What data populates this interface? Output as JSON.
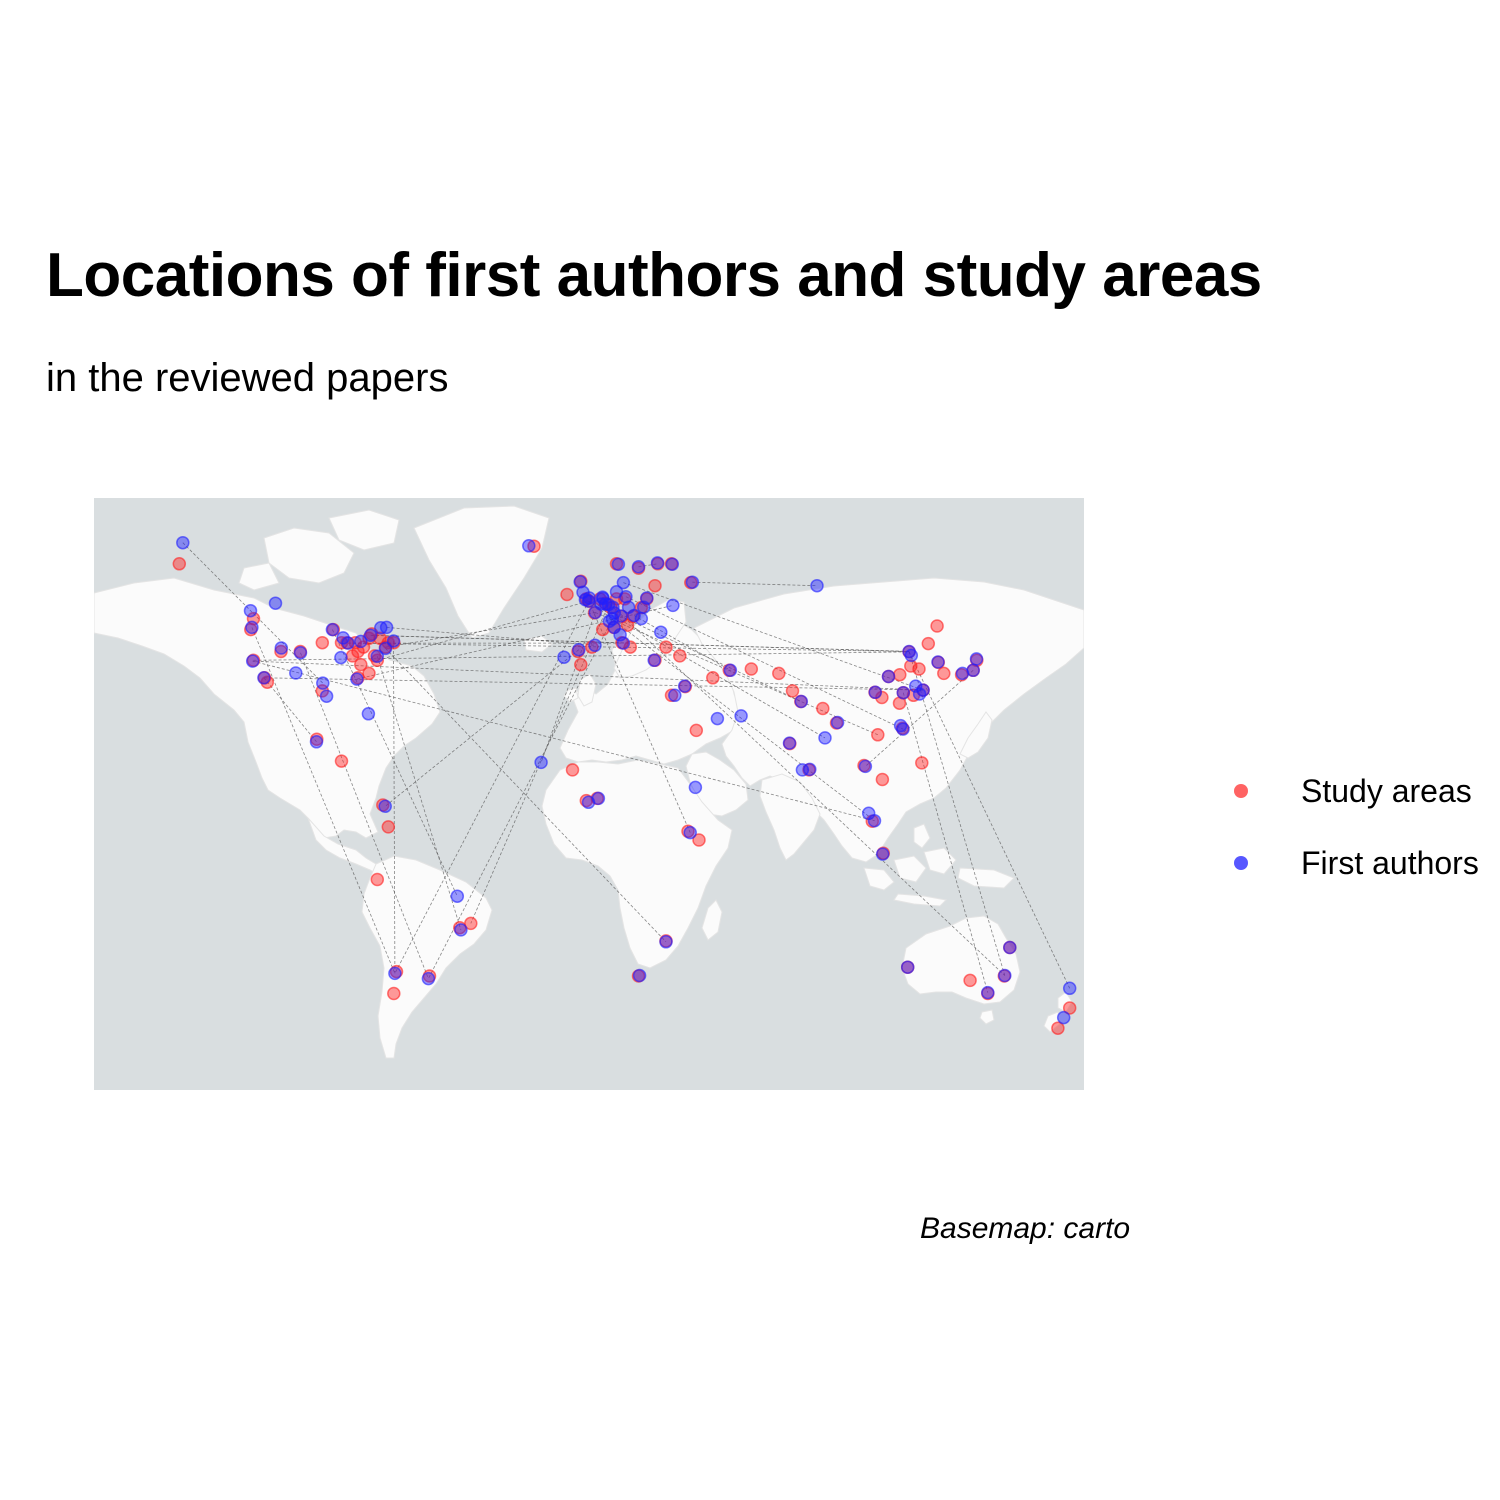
{
  "title": "Locations of first authors and study areas",
  "subtitle": "in the reviewed papers",
  "caption": "Basemap: carto",
  "legend": {
    "items": [
      {
        "label": "Study areas",
        "color": "#ff3030"
      },
      {
        "label": "First authors",
        "color": "#2020ff"
      }
    ]
  },
  "colors": {
    "ocean": "#d9dee0",
    "land": "#fbfbfb",
    "border": "#e2e2e2",
    "study": "#ff2020",
    "author": "#2020ff",
    "link": "#555555"
  },
  "chart_data": {
    "type": "scatter",
    "projection": "equirectangular",
    "lon_range": [
      -180,
      180
    ],
    "lat_range": [
      -60,
      75
    ],
    "series": [
      {
        "name": "Study areas",
        "points": [
          [
            -122,
            38
          ],
          [
            -118,
            34
          ],
          [
            -122,
            47.5
          ],
          [
            -123,
            45
          ],
          [
            -117,
            33
          ],
          [
            -112,
            40
          ],
          [
            -105,
            40
          ],
          [
            -97,
            42
          ],
          [
            -93,
            45
          ],
          [
            -90,
            42
          ],
          [
            -88,
            42
          ],
          [
            -85,
            42
          ],
          [
            -84,
            40
          ],
          [
            -82,
            41
          ],
          [
            -80,
            43
          ],
          [
            -79,
            44
          ],
          [
            -76,
            43
          ],
          [
            -74,
            41
          ],
          [
            -73,
            42
          ],
          [
            -71,
            42
          ],
          [
            -78,
            39
          ],
          [
            -77,
            38
          ],
          [
            -80,
            35
          ],
          [
            -83,
            37
          ],
          [
            -86,
            39
          ],
          [
            -84,
            34
          ],
          [
            -97,
            31
          ],
          [
            -99,
            20
          ],
          [
            -90,
            15
          ],
          [
            -75,
            5
          ],
          [
            -73,
            0
          ],
          [
            -77,
            -12
          ],
          [
            -70,
            -33
          ],
          [
            -71,
            -38
          ],
          [
            -47,
            -23
          ],
          [
            -43,
            -22
          ],
          [
            -58,
            -34
          ],
          [
            -149,
            60
          ],
          [
            -20,
            64
          ],
          [
            -3,
            56
          ],
          [
            -1,
            52
          ],
          [
            0,
            51.5
          ],
          [
            2,
            48.8
          ],
          [
            4,
            52
          ],
          [
            6,
            51
          ],
          [
            8,
            50
          ],
          [
            10,
            52
          ],
          [
            13,
            52
          ],
          [
            12,
            48
          ],
          [
            16,
            48
          ],
          [
            14,
            46
          ],
          [
            19,
            50
          ],
          [
            21,
            52
          ],
          [
            24,
            55
          ],
          [
            25,
            60
          ],
          [
            18,
            59
          ],
          [
            10,
            60
          ],
          [
            -8,
            53
          ],
          [
            -4,
            40
          ],
          [
            -3,
            37
          ],
          [
            1,
            41
          ],
          [
            5,
            45
          ],
          [
            9,
            45.5
          ],
          [
            12,
            42
          ],
          [
            15,
            41
          ],
          [
            24,
            38
          ],
          [
            28,
            41
          ],
          [
            33,
            39
          ],
          [
            35,
            32
          ],
          [
            30,
            30
          ],
          [
            39,
            22
          ],
          [
            45,
            34
          ],
          [
            51,
            35.7
          ],
          [
            59,
            36
          ],
          [
            37,
            55.7
          ],
          [
            30,
            60
          ],
          [
            40,
            -3
          ],
          [
            36,
            -1
          ],
          [
            -6,
            13
          ],
          [
            3,
            6.5
          ],
          [
            -1,
            6
          ],
          [
            28,
            -26
          ],
          [
            18,
            -34
          ],
          [
            69,
            35
          ],
          [
            74,
            31
          ],
          [
            77,
            28.6
          ],
          [
            80,
            13
          ],
          [
            73,
            19
          ],
          [
            85,
            27
          ],
          [
            90,
            23.7
          ],
          [
            100,
            14
          ],
          [
            103,
            1.3
          ],
          [
            105,
            21
          ],
          [
            106.7,
            10.8
          ],
          [
            114,
            22.5
          ],
          [
            116.4,
            39.9
          ],
          [
            121.5,
            31.2
          ],
          [
            118,
            30
          ],
          [
            113,
            34.7
          ],
          [
            108.9,
            34.3
          ],
          [
            104,
            30.7
          ],
          [
            106.5,
            29.5
          ],
          [
            112.9,
            28.2
          ],
          [
            114.3,
            30.6
          ],
          [
            117,
            36.7
          ],
          [
            120,
            36
          ],
          [
            123.4,
            41.8
          ],
          [
            126.6,
            45.8
          ],
          [
            127,
            37.5
          ],
          [
            129,
            35
          ],
          [
            135.5,
            34.7
          ],
          [
            139.7,
            35.7
          ],
          [
            141,
            38
          ],
          [
            121,
            14.6
          ],
          [
            107,
            -6
          ],
          [
            151,
            -34
          ],
          [
            145,
            -38
          ],
          [
            138.6,
            -35
          ],
          [
            115.9,
            -32
          ],
          [
            174.8,
            -41.3
          ],
          [
            170.5,
            -45.9
          ],
          [
            153,
            -27.5
          ]
        ]
      },
      {
        "name": "First authors",
        "points": [
          [
            -122.3,
            37.8
          ],
          [
            -118.2,
            34
          ],
          [
            -122.6,
            45.5
          ],
          [
            -104.9,
            39.7
          ],
          [
            -111.9,
            40.8
          ],
          [
            -96.8,
            32.8
          ],
          [
            -95.4,
            29.8
          ],
          [
            -87.6,
            41.9
          ],
          [
            -83,
            42.3
          ],
          [
            -79.4,
            43.7
          ],
          [
            -75.7,
            45.4
          ],
          [
            -73.6,
            45.5
          ],
          [
            -74,
            40.7
          ],
          [
            -71.1,
            42.4
          ],
          [
            -77,
            38.9
          ],
          [
            -84.4,
            33.7
          ],
          [
            -80.2,
            25.8
          ],
          [
            -90.2,
            38.6
          ],
          [
            -93.3,
            45
          ],
          [
            -89.4,
            43.1
          ],
          [
            -106.6,
            35.1
          ],
          [
            -114,
            51
          ],
          [
            -123.1,
            49.3
          ],
          [
            -147.7,
            64.8
          ],
          [
            -99.1,
            19.4
          ],
          [
            -74.1,
            4.7
          ],
          [
            -70.6,
            -33.4
          ],
          [
            -46.6,
            -23.5
          ],
          [
            -47.9,
            -15.8
          ],
          [
            -58.4,
            -34.6
          ],
          [
            -21.9,
            64.1
          ],
          [
            -0.1,
            51.5
          ],
          [
            -1.3,
            51.8
          ],
          [
            0.1,
            52.2
          ],
          [
            -3.2,
            55.9
          ],
          [
            -2.2,
            53.5
          ],
          [
            2.3,
            48.9
          ],
          [
            4.9,
            52.4
          ],
          [
            5.1,
            52.1
          ],
          [
            4.4,
            50.8
          ],
          [
            6.1,
            50.8
          ],
          [
            7.1,
            50.7
          ],
          [
            8.7,
            50.1
          ],
          [
            9.2,
            48.8
          ],
          [
            11.6,
            48.1
          ],
          [
            13.4,
            52.5
          ],
          [
            10,
            53.6
          ],
          [
            12.5,
            55.7
          ],
          [
            18,
            59.3
          ],
          [
            10.7,
            59.9
          ],
          [
            24.9,
            60.2
          ],
          [
            16.4,
            48.2
          ],
          [
            8.5,
            47.4
          ],
          [
            7.4,
            46.9
          ],
          [
            11.3,
            43.8
          ],
          [
            12.5,
            41.9
          ],
          [
            9.2,
            45.5
          ],
          [
            -3.7,
            40.4
          ],
          [
            2.2,
            41.4
          ],
          [
            -9.1,
            38.7
          ],
          [
            23.7,
            38
          ],
          [
            21,
            52.2
          ],
          [
            19.9,
            50.1
          ],
          [
            14.4,
            50.1
          ],
          [
            19,
            47.5
          ],
          [
            26.1,
            44.4
          ],
          [
            30.5,
            50.5
          ],
          [
            37.6,
            55.8
          ],
          [
            30.3,
            59.9
          ],
          [
            82.9,
            55
          ],
          [
            34.8,
            32.1
          ],
          [
            31.2,
            30
          ],
          [
            46.7,
            24.7
          ],
          [
            51.4,
            35.7
          ],
          [
            55.3,
            25.3
          ],
          [
            77.2,
            28.6
          ],
          [
            72.9,
            19.1
          ],
          [
            80.3,
            13.1
          ],
          [
            77.6,
            13
          ],
          [
            85.8,
            20.3
          ],
          [
            90.4,
            23.8
          ],
          [
            100.5,
            13.8
          ],
          [
            103.8,
            1.4
          ],
          [
            101.7,
            3.1
          ],
          [
            106.8,
            -6.2
          ],
          [
            114.2,
            22.3
          ],
          [
            113.3,
            23.1
          ],
          [
            116.4,
            40
          ],
          [
            121.5,
            31.2
          ],
          [
            118.8,
            32.1
          ],
          [
            120.2,
            30.3
          ],
          [
            114.3,
            30.6
          ],
          [
            104.1,
            30.7
          ],
          [
            108.9,
            34.3
          ],
          [
            117.2,
            39.1
          ],
          [
            126.9,
            37.6
          ],
          [
            139.7,
            35.7
          ],
          [
            135.8,
            35
          ],
          [
            140.9,
            38.3
          ],
          [
            151.2,
            -33.9
          ],
          [
            145,
            -37.8
          ],
          [
            153,
            -27.5
          ],
          [
            115.9,
            -32
          ],
          [
            174.8,
            -36.8
          ],
          [
            172.6,
            -43.5
          ],
          [
            28,
            -26.2
          ],
          [
            18.4,
            -33.9
          ],
          [
            36.8,
            -1.3
          ],
          [
            3.4,
            6.5
          ],
          [
            -17.4,
            14.7
          ],
          [
            -0.2,
            5.6
          ],
          [
            38.7,
            9
          ]
        ]
      }
    ],
    "links": [
      [
        [
          -122,
          38
        ],
        [
          116.4,
          39.9
        ]
      ],
      [
        [
          -118,
          34
        ],
        [
          121.5,
          31.2
        ]
      ],
      [
        [
          -77,
          38
        ],
        [
          -0.1,
          51.5
        ]
      ],
      [
        [
          -74,
          41
        ],
        [
          2.3,
          48.9
        ]
      ],
      [
        [
          -87.6,
          41.9
        ],
        [
          12.5,
          41.9
        ]
      ],
      [
        [
          -79.4,
          43.7
        ],
        [
          116.4,
          40
        ]
      ],
      [
        [
          -71.1,
          42.4
        ],
        [
          -70.6,
          -33.4
        ]
      ],
      [
        [
          -0.1,
          51.5
        ],
        [
          36.8,
          -1.3
        ]
      ],
      [
        [
          -0.1,
          51.5
        ],
        [
          77.2,
          28.6
        ]
      ],
      [
        [
          2.3,
          48.9
        ],
        [
          -17.4,
          14.7
        ]
      ],
      [
        [
          13.4,
          52.5
        ],
        [
          114.2,
          22.3
        ]
      ],
      [
        [
          4.9,
          52.4
        ],
        [
          151.2,
          -33.9
        ]
      ],
      [
        [
          116.4,
          40
        ],
        [
          151.2,
          -33.9
        ]
      ],
      [
        [
          121.5,
          31.2
        ],
        [
          -122.3,
          37.8
        ]
      ],
      [
        [
          -122.3,
          37.8
        ],
        [
          103.8,
          1.4
        ]
      ],
      [
        [
          -77,
          38.9
        ],
        [
          -46.6,
          -23.5
        ]
      ],
      [
        [
          8.5,
          47.4
        ],
        [
          -58.4,
          -34.6
        ]
      ],
      [
        [
          -3.7,
          40.4
        ],
        [
          -74.1,
          4.7
        ]
      ],
      [
        [
          -0.1,
          51.5
        ],
        [
          -70.6,
          -33.4
        ]
      ],
      [
        [
          -147.7,
          64.8
        ],
        [
          -96.8,
          32.8
        ]
      ],
      [
        [
          37.6,
          55.8
        ],
        [
          82.9,
          55
        ]
      ],
      [
        [
          139.7,
          35.7
        ],
        [
          100.5,
          13.8
        ]
      ],
      [
        [
          -87.6,
          41.9
        ],
        [
          116.4,
          40
        ]
      ],
      [
        [
          -73.6,
          45.5
        ],
        [
          2.2,
          41.4
        ]
      ],
      [
        [
          -118.2,
          34
        ],
        [
          -99.1,
          19.4
        ]
      ],
      [
        [
          2.3,
          48.9
        ],
        [
          105,
          21
        ]
      ],
      [
        [
          -0.1,
          51.5
        ],
        [
          103.8,
          1.4
        ]
      ],
      [
        [
          -74,
          40.7
        ],
        [
          28,
          -26.2
        ]
      ],
      [
        [
          18,
          59.3
        ],
        [
          25,
          60
        ]
      ],
      [
        [
          116.4,
          40
        ],
        [
          -79.4,
          43.7
        ]
      ],
      [
        [
          114.3,
          30.6
        ],
        [
          145,
          -37.8
        ]
      ],
      [
        [
          -122.6,
          45.5
        ],
        [
          -70.6,
          -33.4
        ]
      ],
      [
        [
          12.5,
          55.7
        ],
        [
          121.5,
          31.2
        ]
      ],
      [
        [
          -93.3,
          45
        ],
        [
          -47.9,
          -15.8
        ]
      ],
      [
        [
          16.4,
          48.2
        ],
        [
          51.4,
          35.7
        ]
      ],
      [
        [
          -1.3,
          51.8
        ],
        [
          85.8,
          20.3
        ]
      ],
      [
        [
          -104.9,
          39.7
        ],
        [
          -58.4,
          -34.6
        ]
      ],
      [
        [
          7.1,
          50.7
        ],
        [
          -43,
          -22
        ]
      ],
      [
        [
          -84.4,
          33.7
        ],
        [
          30.5,
          50.5
        ]
      ],
      [
        [
          116.4,
          39.9
        ],
        [
          174.8,
          -36.8
        ]
      ]
    ]
  }
}
